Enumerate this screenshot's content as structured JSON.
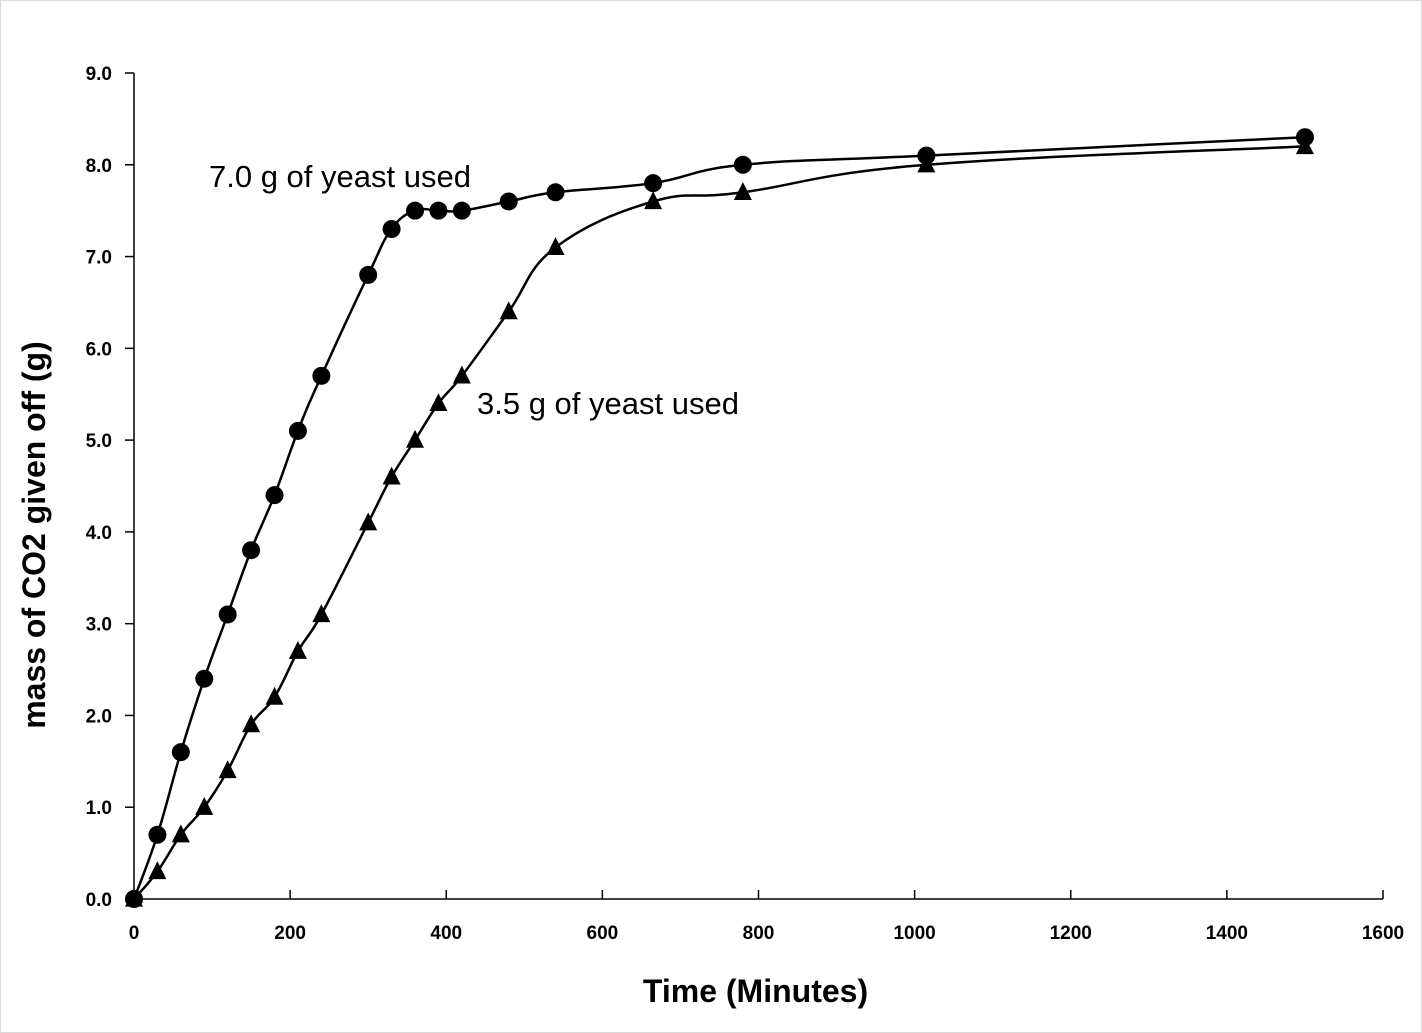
{
  "chart_data": {
    "type": "line",
    "title": "",
    "xlabel": "Time (Minutes)",
    "ylabel": "mass of CO2 given off (g)",
    "xlim": [
      0,
      1600
    ],
    "ylim": [
      0,
      9
    ],
    "x_ticks": [
      0,
      200,
      400,
      600,
      800,
      1000,
      1200,
      1400,
      1600
    ],
    "y_ticks": [
      0,
      1,
      2,
      3,
      4,
      5,
      6,
      7,
      8,
      9
    ],
    "x_tick_labels": [
      "0",
      "200",
      "400",
      "600",
      "800",
      "1000",
      "1200",
      "1400",
      "1600"
    ],
    "y_tick_labels": [
      "0.0",
      "1.0",
      "2.0",
      "3.0",
      "4.0",
      "5.0",
      "6.0",
      "7.0",
      "8.0",
      "9.0"
    ],
    "grid": false,
    "legend": "none",
    "series": [
      {
        "name": "7.0 g of yeast used",
        "marker": "circle",
        "color": "#000000",
        "x": [
          0,
          30,
          60,
          90,
          120,
          150,
          180,
          210,
          240,
          300,
          330,
          360,
          390,
          420,
          480,
          540,
          665,
          780,
          1015,
          1500
        ],
        "y": [
          0.0,
          0.7,
          1.6,
          2.4,
          3.1,
          3.8,
          4.4,
          5.1,
          5.7,
          6.8,
          7.3,
          7.5,
          7.5,
          7.5,
          7.6,
          7.7,
          7.8,
          8.0,
          8.1,
          8.3
        ]
      },
      {
        "name": "3.5 g of yeast used",
        "marker": "triangle",
        "color": "#000000",
        "x": [
          0,
          30,
          60,
          90,
          120,
          150,
          180,
          210,
          240,
          300,
          330,
          360,
          390,
          420,
          480,
          540,
          665,
          780,
          1015,
          1500
        ],
        "y": [
          0.0,
          0.3,
          0.7,
          1.0,
          1.4,
          1.9,
          2.2,
          2.7,
          3.1,
          4.1,
          4.6,
          5.0,
          5.4,
          5.7,
          6.4,
          7.1,
          7.6,
          7.7,
          8.0,
          8.2
        ]
      }
    ],
    "annotations": [
      {
        "text": "7.0 g of yeast used",
        "series": 0,
        "near_x": 290,
        "near_y": 8.1
      },
      {
        "text": "3.5 g of yeast used",
        "series": 1,
        "near_x": 440,
        "near_y": 5.4
      }
    ]
  }
}
